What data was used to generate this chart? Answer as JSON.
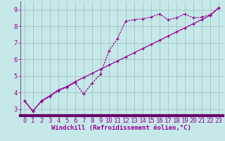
{
  "xlabel": "Windchill (Refroidissement éolien,°C)",
  "background_color": "#c5e8e8",
  "line_color": "#990099",
  "grid_color": "#a0bebe",
  "axis_color": "#660066",
  "xlim": [
    -0.5,
    23.5
  ],
  "ylim": [
    2.6,
    9.5
  ],
  "yticks": [
    3,
    4,
    5,
    6,
    7,
    8,
    9
  ],
  "xticks": [
    0,
    1,
    2,
    3,
    4,
    5,
    6,
    7,
    8,
    9,
    10,
    11,
    12,
    13,
    14,
    15,
    16,
    17,
    18,
    19,
    20,
    21,
    22,
    23
  ],
  "series1_x": [
    0,
    1,
    2,
    3,
    4,
    5,
    6,
    7,
    8,
    9,
    10,
    11,
    12,
    13,
    14,
    15,
    16,
    17,
    18,
    19,
    20,
    21,
    22,
    23
  ],
  "series1_y": [
    3.5,
    2.9,
    3.45,
    3.75,
    4.1,
    4.3,
    4.6,
    3.9,
    4.55,
    5.1,
    6.5,
    7.25,
    8.3,
    8.4,
    8.45,
    8.55,
    8.75,
    8.4,
    8.5,
    8.75,
    8.5,
    8.55,
    8.7,
    9.1
  ],
  "series2_x": [
    0,
    1,
    2,
    3,
    4,
    5,
    6,
    7,
    8,
    9,
    10,
    11,
    12,
    13,
    14,
    15,
    16,
    17,
    18,
    19,
    20,
    21,
    22,
    23
  ],
  "series2_y": [
    3.5,
    2.85,
    3.5,
    3.8,
    4.15,
    4.35,
    4.65,
    4.9,
    5.15,
    5.4,
    5.65,
    5.9,
    6.15,
    6.4,
    6.65,
    6.9,
    7.15,
    7.4,
    7.65,
    7.9,
    8.15,
    8.4,
    8.65,
    9.1
  ],
  "tick_fontsize": 6.5,
  "xlabel_fontsize": 6.5,
  "marker_size": 3,
  "linewidth": 0.9
}
